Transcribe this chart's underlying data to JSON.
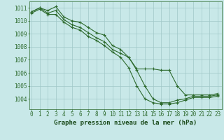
{
  "series": [
    {
      "x": [
        0,
        1,
        2,
        3,
        4,
        5,
        6,
        7,
        8,
        9,
        10,
        11,
        12,
        13,
        14,
        15,
        16,
        17,
        18,
        19,
        20,
        21,
        22,
        23
      ],
      "y": [
        1010.7,
        1011.0,
        1010.8,
        1011.1,
        1010.3,
        1010.0,
        1009.9,
        1009.5,
        1009.1,
        1008.9,
        1008.1,
        1007.8,
        1007.2,
        1006.3,
        1006.3,
        1006.3,
        1006.2,
        1006.2,
        1005.0,
        1004.3,
        1004.3,
        1004.3,
        1004.3,
        1004.4
      ]
    },
    {
      "x": [
        0,
        1,
        2,
        3,
        4,
        5,
        6,
        7,
        8,
        9,
        10,
        11,
        12,
        13,
        14,
        15,
        16,
        17,
        18,
        19,
        20,
        21,
        22,
        23
      ],
      "y": [
        1010.7,
        1011.0,
        1010.6,
        1010.8,
        1010.1,
        1009.7,
        1009.5,
        1009.1,
        1008.7,
        1008.4,
        1007.8,
        1007.5,
        1007.2,
        1006.2,
        1005.0,
        1004.0,
        1003.7,
        1003.7,
        1003.9,
        1004.0,
        1004.2,
        1004.2,
        1004.2,
        1004.3
      ]
    },
    {
      "x": [
        0,
        1,
        2,
        3,
        4,
        5,
        6,
        7,
        8,
        9,
        10,
        11,
        12,
        13,
        14,
        15,
        16,
        17,
        18,
        19,
        20,
        21,
        22,
        23
      ],
      "y": [
        1010.6,
        1010.9,
        1010.5,
        1010.5,
        1009.9,
        1009.5,
        1009.3,
        1008.8,
        1008.5,
        1008.1,
        1007.6,
        1007.2,
        1006.4,
        1005.0,
        1004.0,
        1003.7,
        1003.6,
        1003.6,
        1003.7,
        1003.9,
        1004.1,
        1004.1,
        1004.1,
        1004.2
      ]
    }
  ],
  "line_color": "#2d6a2d",
  "marker": "+",
  "markersize": 3,
  "linewidth": 0.8,
  "bg_color": "#c8e8e8",
  "grid_color": "#a0c8c8",
  "xlabel": "Graphe pression niveau de la mer (hPa)",
  "xlabel_color": "#1a4a1a",
  "xlabel_fontsize": 6.5,
  "tick_color": "#2d6a2d",
  "tick_fontsize": 5.5,
  "ylim": [
    1003.2,
    1011.5
  ],
  "yticks": [
    1004,
    1005,
    1006,
    1007,
    1008,
    1009,
    1010,
    1011
  ],
  "xticks": [
    0,
    1,
    2,
    3,
    4,
    5,
    6,
    7,
    8,
    9,
    10,
    11,
    12,
    13,
    14,
    15,
    16,
    17,
    18,
    19,
    20,
    21,
    22,
    23
  ],
  "xlim": [
    -0.3,
    23.5
  ]
}
